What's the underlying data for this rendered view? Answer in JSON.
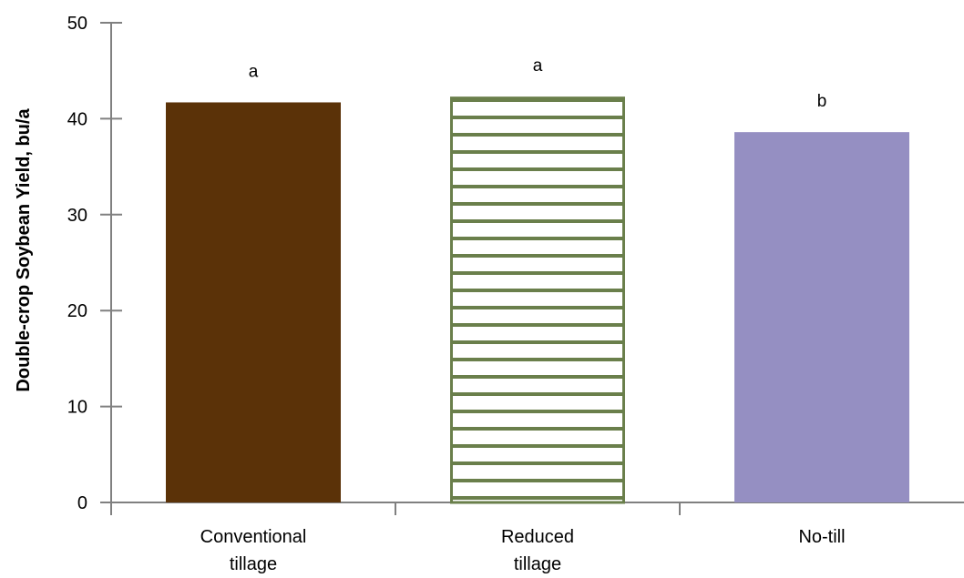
{
  "chart_data": {
    "type": "bar",
    "title": "",
    "xlabel": "",
    "ylabel": "Double-crop Soybean Yield, bu/a",
    "ylim": [
      0,
      50
    ],
    "yticks": [
      0,
      10,
      20,
      30,
      40,
      50
    ],
    "grid": false,
    "legend": "none",
    "categories": [
      "Conventional tillage",
      "Reduced tillage",
      "No-till"
    ],
    "category_lines": [
      [
        "Conventional",
        "tillage"
      ],
      [
        "Reduced",
        "tillage"
      ],
      [
        "No-till"
      ]
    ],
    "values": [
      41.7,
      42.3,
      38.6
    ],
    "significance_labels": [
      "a",
      "a",
      "b"
    ],
    "bar_styles": [
      {
        "fill": "#5b3208",
        "pattern": "solid"
      },
      {
        "fill": "#ffffff",
        "pattern": "horizontal-stripes",
        "stroke": "#6a7f4b"
      },
      {
        "fill": "#958fc2",
        "pattern": "solid"
      }
    ],
    "axis_color": "#808080"
  }
}
